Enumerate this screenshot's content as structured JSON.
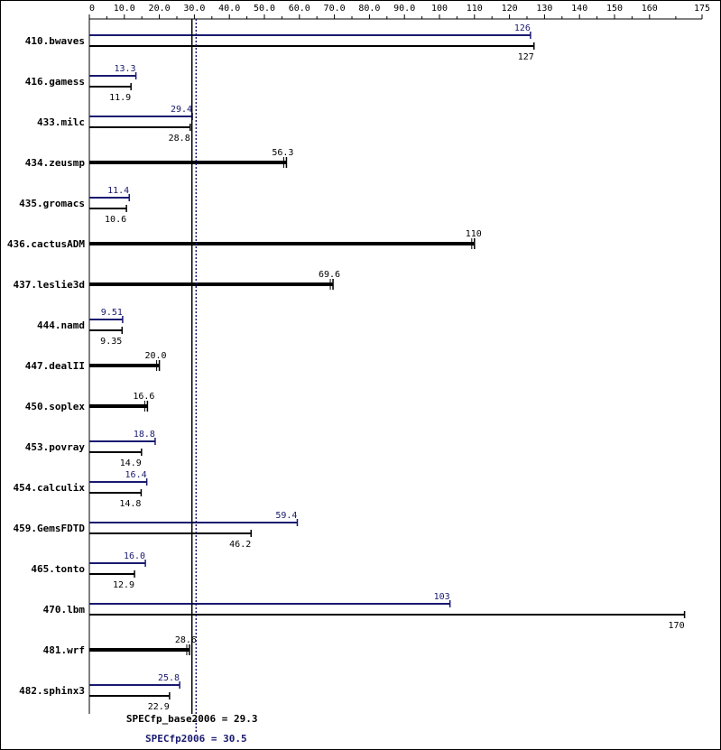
{
  "chart_data": {
    "type": "bar",
    "x_range": [
      0,
      175
    ],
    "x_ticks": [
      "0",
      "10.0",
      "20.0",
      "30.0",
      "40.0",
      "50.0",
      "60.0",
      "70.0",
      "80.0",
      "90.0",
      "100",
      "110",
      "120",
      "130",
      "140",
      "150",
      "160",
      "175"
    ],
    "x_tick_values": [
      0,
      10,
      20,
      30,
      40,
      50,
      60,
      70,
      80,
      90,
      100,
      110,
      120,
      130,
      140,
      150,
      160,
      175
    ],
    "gridlines": false,
    "benchmarks": [
      {
        "name": "410.bwaves",
        "peak": 126,
        "peak_label": "126",
        "base": 127,
        "base_label": "127"
      },
      {
        "name": "416.gamess",
        "peak": 13.3,
        "peak_label": "13.3",
        "base": 11.9,
        "base_label": "11.9"
      },
      {
        "name": "433.milc",
        "peak": 29.4,
        "peak_label": "29.4",
        "base": 28.8,
        "base_label": "28.8"
      },
      {
        "name": "434.zeusmp",
        "peak": null,
        "peak_label": null,
        "base": 56.3,
        "base_label": "56.3"
      },
      {
        "name": "435.gromacs",
        "peak": 11.4,
        "peak_label": "11.4",
        "base": 10.6,
        "base_label": "10.6"
      },
      {
        "name": "436.cactusADM",
        "peak": null,
        "peak_label": null,
        "base": 110,
        "base_label": "110"
      },
      {
        "name": "437.leslie3d",
        "peak": null,
        "peak_label": null,
        "base": 69.6,
        "base_label": "69.6"
      },
      {
        "name": "444.namd",
        "peak": 9.51,
        "peak_label": "9.51",
        "base": 9.35,
        "base_label": "9.35"
      },
      {
        "name": "447.dealII",
        "peak": null,
        "peak_label": null,
        "base": 20.0,
        "base_label": "20.0"
      },
      {
        "name": "450.soplex",
        "peak": null,
        "peak_label": null,
        "base": 16.6,
        "base_label": "16.6"
      },
      {
        "name": "453.povray",
        "peak": 18.8,
        "peak_label": "18.8",
        "base": 14.9,
        "base_label": "14.9"
      },
      {
        "name": "454.calculix",
        "peak": 16.4,
        "peak_label": "16.4",
        "base": 14.8,
        "base_label": "14.8"
      },
      {
        "name": "459.GemsFDTD",
        "peak": 59.4,
        "peak_label": "59.4",
        "base": 46.2,
        "base_label": "46.2"
      },
      {
        "name": "465.tonto",
        "peak": 16.0,
        "peak_label": "16.0",
        "base": 12.9,
        "base_label": "12.9"
      },
      {
        "name": "470.lbm",
        "peak": 103,
        "peak_label": "103",
        "base": 170,
        "base_label": "170"
      },
      {
        "name": "481.wrf",
        "peak": null,
        "peak_label": null,
        "base": 28.6,
        "base_label": "28.6"
      },
      {
        "name": "482.sphinx3",
        "peak": 25.8,
        "peak_label": "25.8",
        "base": 22.9,
        "base_label": "22.9"
      }
    ],
    "summary": {
      "base_label": "SPECfp_base2006 = 29.3",
      "base_value": 29.3,
      "peak_label": "SPECfp2006 = 30.5",
      "peak_value": 30.5
    },
    "colors": {
      "peak": "#191970",
      "base": "#000000",
      "background": "#ffffff"
    }
  }
}
